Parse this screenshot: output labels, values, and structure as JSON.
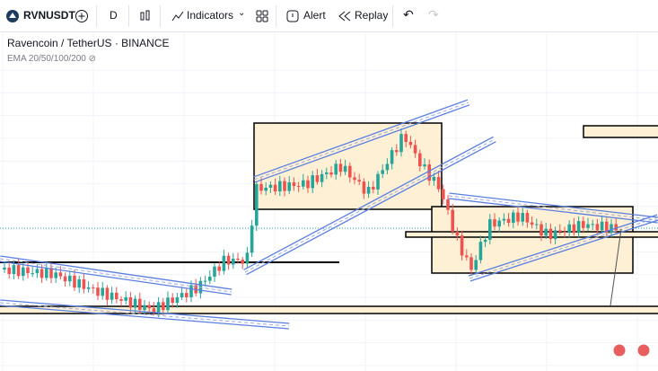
{
  "toolbar": {
    "symbol": "RVNUSDT",
    "interval": "D",
    "indicators": "Indicators",
    "alert": "Alert",
    "replay": "Replay"
  },
  "legend": {
    "title": "Ravencoin / TetherUS · BINANCE",
    "indicator": "EMA 20/50/100/200"
  }
}
